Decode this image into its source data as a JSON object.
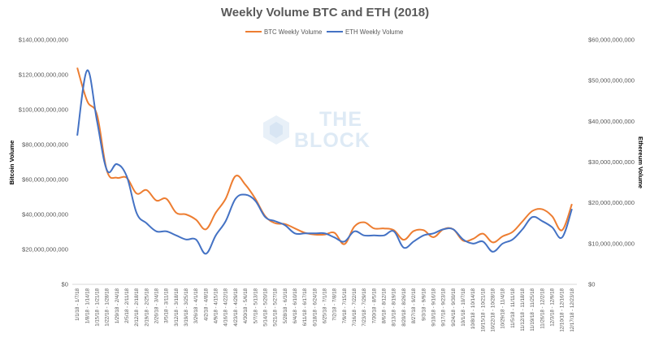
{
  "chart_data": {
    "type": "line",
    "title": "Weekly Volume BTC and ETH (2018)",
    "ylabel_left": "Bitcoin Volume",
    "ylabel_right": "Ethereum Volume",
    "ylim_left": [
      0,
      140000000000
    ],
    "ylim_right": [
      0,
      60000000000
    ],
    "yticks_left": [
      "$0",
      "$20,000,000,000",
      "$40,000,000,000",
      "$60,000,000,000",
      "$80,000,000,000",
      "$100,000,000,000",
      "$120,000,000,000",
      "$140,000,000,000"
    ],
    "yticks_right": [
      "$0",
      "$10,000,000,000",
      "$20,000,000,000",
      "$30,000,000,000",
      "$40,000,000,000",
      "$50,000,000,000",
      "$60,000,000,000"
    ],
    "legend": "top-center",
    "categories": [
      "1/1/18 - 1/7/18",
      "1/8/18 - 1/14/18",
      "1/15/18 - 1/21/18",
      "1/22/18 - 1/28/18",
      "1/29/18 - 2/4/18",
      "2/5/18 - 2/11/18",
      "2/12/18 - 2/18/18",
      "2/19/18 - 2/25/18",
      "2/26/18 - 3/4/18",
      "3/5/18 - 3/11/18",
      "3/12/18 - 3/18/18",
      "3/19/18 - 3/25/18",
      "3/26/18 - 4/1/18",
      "4/2/18 - 4/8/18",
      "4/9/18 - 4/15/18",
      "4/16/18 - 4/22/18",
      "4/23/18 - 4/29/18",
      "4/30/18 - 5/6/18",
      "5/7/18 - 5/13/18",
      "5/14/18 - 5/20/18",
      "5/21/18 - 5/27/18",
      "5/28/18 - 6/3/18",
      "6/4/18 - 6/10/18",
      "6/11/18 - 6/17/18",
      "6/18/18 - 6/24/18",
      "6/25/18 - 7/1/18",
      "7/2/18 - 7/8/18",
      "7/9/18 - 7/15/18",
      "7/16/18 - 7/22/18",
      "7/23/18 - 7/29/18",
      "7/30/18 - 8/5/18",
      "8/6/18 - 8/12/18",
      "8/13/18 - 8/19/18",
      "8/20/18 - 8/26/18",
      "8/27/18 - 9/2/18",
      "9/3/18 - 9/9/18",
      "9/10/18 - 9/16/18",
      "9/17/18 - 9/23/18",
      "9/24/18 - 9/30/18",
      "10/1/18 - 10/7/18",
      "10/8/18 - 10/14/18",
      "10/15/18 - 10/21/18",
      "10/22/18 - 10/28/18",
      "10/29/18 - 11/4/18",
      "11/5/18 - 11/11/18",
      "11/12/18 - 11/18/18",
      "11/19/18 - 11/25/18",
      "11/26/18 - 12/2/18",
      "12/3/18 - 12/9/18",
      "12/10/18 - 12/16/18",
      "12/17/18 - 12/23/18"
    ],
    "series": [
      {
        "name": "BTC Weekly Volume",
        "axis": "left",
        "color": "#ED7D31",
        "values": [
          124000000000,
          105000000000,
          97000000000,
          65000000000,
          61000000000,
          61000000000,
          52000000000,
          54000000000,
          48000000000,
          49000000000,
          41000000000,
          40000000000,
          37000000000,
          31500000000,
          41000000000,
          49000000000,
          62000000000,
          57000000000,
          49000000000,
          39000000000,
          35000000000,
          34500000000,
          32000000000,
          29500000000,
          28500000000,
          28500000000,
          29500000000,
          23000000000,
          33000000000,
          35500000000,
          32000000000,
          32000000000,
          31000000000,
          25500000000,
          30500000000,
          31000000000,
          27000000000,
          31500000000,
          31500000000,
          25000000000,
          26000000000,
          29000000000,
          24000000000,
          27500000000,
          30000000000,
          36000000000,
          42000000000,
          43000000000,
          39000000000,
          31000000000,
          46000000000
        ]
      },
      {
        "name": "ETH Weekly Volume",
        "axis": "right",
        "color": "#4472C4",
        "values": [
          36500000000,
          52500000000,
          40000000000,
          28000000000,
          29500000000,
          26500000000,
          17500000000,
          15000000000,
          13000000000,
          13000000000,
          12000000000,
          11000000000,
          11000000000,
          7500000000,
          12000000000,
          15500000000,
          21000000000,
          22000000000,
          20500000000,
          16500000000,
          15500000000,
          14500000000,
          12500000000,
          12500000000,
          12500000000,
          12500000000,
          11500000000,
          10500000000,
          13000000000,
          12000000000,
          12000000000,
          12000000000,
          13000000000,
          9000000000,
          10500000000,
          12000000000,
          12500000000,
          13500000000,
          13500000000,
          11000000000,
          10000000000,
          10500000000,
          8000000000,
          10000000000,
          11000000000,
          13500000000,
          16500000000,
          15500000000,
          14000000000,
          11500000000,
          18500000000
        ]
      }
    ]
  },
  "watermark": {
    "line1": "THE",
    "line2": "BLOCK"
  }
}
